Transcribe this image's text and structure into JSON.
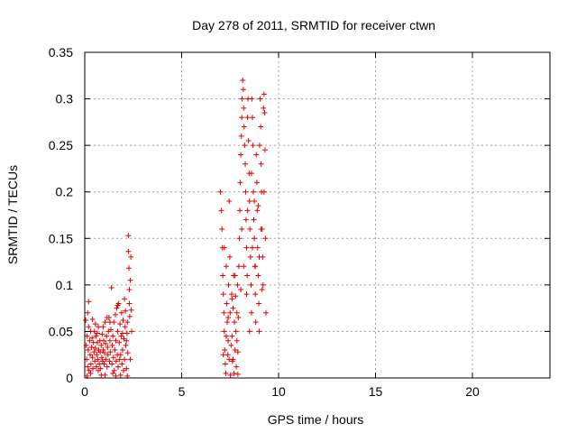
{
  "chart_data": {
    "type": "scatter",
    "title": "Day 278 of 2011, SRMTID for receiver ctwn",
    "xlabel": "GPS time / hours",
    "ylabel": "SRMTID / TECUs",
    "xlim": [
      0,
      24
    ],
    "ylim": [
      0,
      0.35
    ],
    "xticks": [
      0,
      5,
      10,
      15,
      20
    ],
    "yticks": [
      0,
      0.05,
      0.1,
      0.15,
      0.2,
      0.25,
      0.3,
      0.35
    ],
    "xtick_labels": [
      "0",
      "5",
      "10",
      "15",
      "20"
    ],
    "ytick_labels": [
      "0",
      "0.05",
      "0.1",
      "0.15",
      "0.2",
      "0.25",
      "0.3",
      "0.35"
    ],
    "grid": true,
    "marker": "plus",
    "color": "#e00000",
    "series": [
      {
        "points": [
          [
            0.05,
            0.062
          ],
          [
            0.08,
            0.035
          ],
          [
            0.1,
            0.02
          ],
          [
            0.12,
            0.045
          ],
          [
            0.15,
            0.07
          ],
          [
            0.15,
            0.012
          ],
          [
            0.18,
            0.03
          ],
          [
            0.2,
            0.055
          ],
          [
            0.2,
            0.082
          ],
          [
            0.22,
            0.008
          ],
          [
            0.25,
            0.04
          ],
          [
            0.28,
            0.025
          ],
          [
            0.3,
            0.05
          ],
          [
            0.32,
            0.015
          ],
          [
            0.35,
            0.033
          ],
          [
            0.38,
            0.043
          ],
          [
            0.4,
            0.022
          ],
          [
            0.42,
            0.01
          ],
          [
            0.45,
            0.038
          ],
          [
            0.48,
            0.028
          ],
          [
            0.5,
            0.05
          ],
          [
            0.52,
            0.018
          ],
          [
            0.55,
            0.032
          ],
          [
            0.58,
            0.045
          ],
          [
            0.6,
            0.012
          ],
          [
            0.62,
            0.025
          ],
          [
            0.65,
            0.038
          ],
          [
            0.68,
            0.02
          ],
          [
            0.7,
            0.055
          ],
          [
            0.72,
            0.03
          ],
          [
            0.75,
            0.015
          ],
          [
            0.78,
            0.04
          ],
          [
            0.8,
            0.028
          ],
          [
            0.82,
            0.01
          ],
          [
            0.85,
            0.035
          ],
          [
            0.88,
            0.022
          ],
          [
            0.9,
            0.047
          ],
          [
            0.92,
            0.018
          ],
          [
            0.95,
            0.03
          ],
          [
            0.98,
            0.04
          ],
          [
            1.0,
            0.015
          ],
          [
            1.02,
            0.027
          ],
          [
            1.05,
            0.06
          ],
          [
            1.08,
            0.037
          ],
          [
            1.1,
            0.02
          ],
          [
            1.12,
            0.045
          ],
          [
            1.15,
            0.012
          ],
          [
            1.18,
            0.033
          ],
          [
            1.2,
            0.025
          ],
          [
            1.22,
            0.05
          ],
          [
            1.25,
            0.065
          ],
          [
            1.28,
            0.018
          ],
          [
            1.3,
            0.04
          ],
          [
            1.32,
            0.028
          ],
          [
            1.35,
            0.052
          ],
          [
            1.38,
            0.097
          ],
          [
            1.4,
            0.015
          ],
          [
            1.42,
            0.035
          ],
          [
            1.45,
            0.045
          ],
          [
            1.48,
            0.022
          ],
          [
            1.5,
            0.06
          ],
          [
            1.52,
            0.008
          ],
          [
            1.55,
            0.03
          ],
          [
            1.58,
            0.068
          ],
          [
            1.6,
            0.04
          ],
          [
            1.62,
            0.018
          ],
          [
            1.65,
            0.075
          ],
          [
            1.68,
            0.025
          ],
          [
            1.7,
            0.05
          ],
          [
            1.72,
            0.012
          ],
          [
            1.75,
            0.08
          ],
          [
            1.78,
            0.038
          ],
          [
            1.8,
            0.02
          ],
          [
            1.82,
            0.058
          ],
          [
            1.85,
            0.003
          ],
          [
            1.88,
            0.045
          ],
          [
            1.9,
            0.07
          ],
          [
            1.92,
            0.015
          ],
          [
            1.95,
            0.03
          ],
          [
            1.98,
            0.062
          ],
          [
            2.0,
            0.008
          ],
          [
            2.02,
            0.042
          ],
          [
            2.05,
            0.02
          ],
          [
            2.08,
            0.055
          ],
          [
            2.1,
            0.072
          ],
          [
            2.12,
            0.035
          ],
          [
            2.15,
            0.01
          ],
          [
            2.18,
            0.048
          ],
          [
            2.2,
            0.06
          ],
          [
            2.22,
            0.027
          ],
          [
            2.25,
            0.153
          ],
          [
            2.25,
            0.136
          ],
          [
            2.28,
            0.118
          ],
          [
            2.3,
            0.08
          ],
          [
            2.3,
            0.095
          ],
          [
            2.32,
            0.066
          ],
          [
            2.35,
            0.105
          ],
          [
            2.38,
            0.13
          ],
          [
            2.4,
            0.073
          ],
          [
            2.42,
            0.05
          ],
          [
            0.3,
            0.005
          ],
          [
            0.55,
            0.058
          ],
          [
            0.7,
            0.008
          ],
          [
            0.95,
            0.055
          ],
          [
            1.15,
            0.065
          ],
          [
            1.45,
            0.005
          ],
          [
            1.7,
            0.078
          ],
          [
            1.95,
            0.048
          ],
          [
            2.05,
            0.085
          ],
          [
            2.2,
            0.002
          ],
          [
            0.4,
            0.063
          ],
          [
            0.85,
            0.003
          ],
          [
            1.3,
            0.06
          ],
          [
            1.6,
            0.002
          ],
          [
            2.15,
            0.04
          ],
          [
            0.65,
            0.048
          ],
          [
            1.05,
            0.003
          ],
          [
            1.85,
            0.025
          ],
          [
            0.12,
            0.002
          ],
          [
            2.35,
            0.02
          ],
          [
            7.0,
            0.2
          ],
          [
            7.05,
            0.18
          ],
          [
            7.08,
            0.16
          ],
          [
            7.1,
            0.14
          ],
          [
            7.12,
            0.11
          ],
          [
            7.15,
            0.09
          ],
          [
            7.18,
            0.07
          ],
          [
            7.2,
            0.05
          ],
          [
            7.22,
            0.03
          ],
          [
            7.25,
            0.015
          ],
          [
            7.28,
            0.005
          ],
          [
            7.3,
            0.12
          ],
          [
            7.32,
            0.08
          ],
          [
            7.35,
            0.06
          ],
          [
            7.38,
            0.025
          ],
          [
            7.4,
            0.04
          ],
          [
            7.42,
            0.1
          ],
          [
            7.45,
            0.19
          ],
          [
            7.48,
            0.13
          ],
          [
            7.5,
            0.07
          ],
          [
            7.52,
            0.003
          ],
          [
            7.55,
            0.035
          ],
          [
            7.58,
            0.09
          ],
          [
            7.6,
            0.045
          ],
          [
            7.62,
            0.018
          ],
          [
            7.65,
            0.075
          ],
          [
            7.68,
            0.11
          ],
          [
            7.7,
            0.005
          ],
          [
            7.72,
            0.06
          ],
          [
            7.75,
            0.03
          ],
          [
            7.78,
            0.088
          ],
          [
            7.8,
            0.05
          ],
          [
            7.82,
            0.012
          ],
          [
            7.85,
            0.07
          ],
          [
            7.88,
            0.1
          ],
          [
            7.9,
            0.028
          ],
          [
            7.92,
            0.065
          ],
          [
            7.95,
            0.12
          ],
          [
            7.98,
            0.15
          ],
          [
            8.0,
            0.18
          ],
          [
            8.02,
            0.21
          ],
          [
            8.05,
            0.24
          ],
          [
            8.08,
            0.26
          ],
          [
            8.1,
            0.28
          ],
          [
            8.12,
            0.3
          ],
          [
            8.15,
            0.32
          ],
          [
            8.18,
            0.31
          ],
          [
            8.2,
            0.29
          ],
          [
            8.22,
            0.27
          ],
          [
            8.25,
            0.25
          ],
          [
            8.28,
            0.23
          ],
          [
            8.3,
            0.2
          ],
          [
            8.32,
            0.17
          ],
          [
            8.35,
            0.14
          ],
          [
            8.38,
            0.11
          ],
          [
            8.4,
            0.28
          ],
          [
            8.42,
            0.3
          ],
          [
            8.45,
            0.255
          ],
          [
            8.48,
            0.22
          ],
          [
            8.5,
            0.19
          ],
          [
            8.52,
            0.16
          ],
          [
            8.55,
            0.13
          ],
          [
            8.58,
            0.1
          ],
          [
            8.6,
            0.07
          ],
          [
            8.62,
            0.3
          ],
          [
            8.65,
            0.28
          ],
          [
            8.68,
            0.25
          ],
          [
            8.7,
            0.2
          ],
          [
            8.72,
            0.17
          ],
          [
            8.75,
            0.15
          ],
          [
            8.78,
            0.12
          ],
          [
            8.8,
            0.09
          ],
          [
            8.82,
            0.06
          ],
          [
            8.85,
            0.24
          ],
          [
            8.88,
            0.21
          ],
          [
            8.9,
            0.18
          ],
          [
            8.92,
            0.14
          ],
          [
            8.95,
            0.11
          ],
          [
            8.98,
            0.08
          ],
          [
            9.0,
            0.05
          ],
          [
            9.02,
            0.25
          ],
          [
            9.05,
            0.3
          ],
          [
            9.08,
            0.27
          ],
          [
            9.1,
            0.23
          ],
          [
            9.12,
            0.2
          ],
          [
            9.15,
            0.16
          ],
          [
            9.18,
            0.13
          ],
          [
            9.2,
            0.1
          ],
          [
            9.22,
            0.29
          ],
          [
            9.25,
            0.305
          ],
          [
            9.28,
            0.285
          ],
          [
            9.3,
            0.245
          ],
          [
            9.32,
            0.15
          ],
          [
            9.35,
            0.07
          ],
          [
            7.15,
            0.025
          ],
          [
            7.3,
            0.045
          ],
          [
            7.45,
            0.02
          ],
          [
            7.6,
            0.085
          ],
          [
            7.75,
            0.11
          ],
          [
            7.9,
            0.004
          ],
          [
            8.05,
            0.095
          ],
          [
            8.2,
            0.12
          ],
          [
            8.35,
            0.09
          ],
          [
            8.5,
            0.05
          ],
          [
            8.65,
            0.14
          ],
          [
            8.8,
            0.12
          ],
          [
            8.95,
            0.185
          ],
          [
            9.1,
            0.16
          ],
          [
            9.25,
            0.2
          ],
          [
            7.2,
            0.14
          ],
          [
            7.4,
            0.065
          ],
          [
            7.65,
            0.02
          ],
          [
            7.85,
            0.04
          ],
          [
            8.1,
            0.16
          ],
          [
            8.4,
            0.18
          ],
          [
            8.6,
            0.22
          ],
          [
            8.75,
            0.19
          ],
          [
            9.0,
            0.13
          ],
          [
            9.15,
            0.095
          ]
        ]
      }
    ]
  }
}
